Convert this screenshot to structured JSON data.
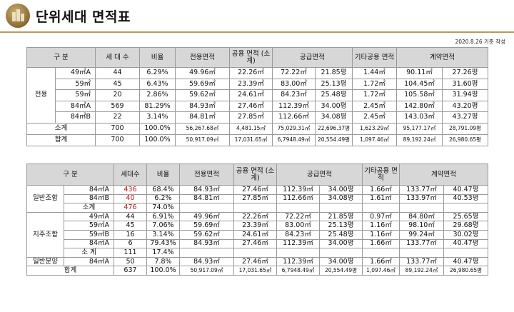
{
  "header": {
    "title": "단위세대 면적표",
    "date": "2020.8.26 기준 작성"
  },
  "table1": {
    "headers": [
      "구 분",
      "세 대 수",
      "비율",
      "전용면적",
      "공용 면적 (소계)",
      "공급면적",
      "기타공용 면적",
      "계약면적"
    ],
    "group": "전용",
    "rows": [
      [
        "49㎡A",
        "44",
        "6.29%",
        "49.96㎡",
        "22.26㎡",
        "72.22㎡",
        "21.85평",
        "1.44㎡",
        "90.11㎡",
        "27.26평"
      ],
      [
        "59㎡",
        "45",
        "6.43%",
        "59.69㎡",
        "23.39㎡",
        "83.00㎡",
        "25.13평",
        "1.72㎡",
        "104.45㎡",
        "31.60평"
      ],
      [
        "59㎡",
        "20",
        "2.86%",
        "59.62㎡",
        "24.61㎡",
        "84.23㎡",
        "25.48평",
        "1.72㎡",
        "105.58㎡",
        "31.94평"
      ],
      [
        "84㎡A",
        "569",
        "81.29%",
        "84.93㎡",
        "27.46㎡",
        "112.39㎡",
        "34.00평",
        "2.45㎡",
        "142.80㎡",
        "43.20평"
      ],
      [
        "84㎡B",
        "22",
        "3.14%",
        "84.81㎡",
        "27.85㎡",
        "112.66㎡",
        "34.08평",
        "2.45㎡",
        "143.03㎡",
        "43.27평"
      ]
    ],
    "subtotal": [
      "소계",
      "700",
      "100.0%",
      "56,267.68㎡",
      "4,481.15㎡",
      "75,029.31㎡",
      "22,696.37평",
      "1,623.29㎡",
      "95,177.17㎡",
      "28,791.09평"
    ],
    "total": [
      "합계",
      "700",
      "100.0%",
      "50,917.09㎡",
      "17,031.65㎡",
      "6,7948.49㎡",
      "20,554.49평",
      "1,097.46㎡",
      "89,192.24㎡",
      "26,980.65평"
    ]
  },
  "table2": {
    "headers": [
      "구 분",
      "세대수",
      "비율",
      "전용면적",
      "공용 면적 (소계)",
      "공급면적",
      "기타공용 면적",
      "계약면적"
    ],
    "groups": [
      {
        "name": "일반조합",
        "rows": [
          [
            "84㎡A",
            "436",
            "68.4%",
            "84.93㎡",
            "27.46㎡",
            "112.39㎡",
            "34.00평",
            "1.66㎡",
            "133.77㎡",
            "40.47평"
          ],
          [
            "84㎡B",
            "40",
            "6.2%",
            "84.81㎡",
            "27.85㎡",
            "112.66㎡",
            "34.08평",
            "1.61㎡",
            "133.97㎡",
            "40.53평"
          ]
        ],
        "subtotal": [
          "소계",
          "476",
          "74.0%"
        ]
      },
      {
        "name": "지주조합",
        "rows": [
          [
            "49㎡A",
            "44",
            "6.91%",
            "49.96㎡",
            "22.26㎡",
            "72.22㎡",
            "21.85평",
            "0.97㎡",
            "84.80㎡",
            "25.65평"
          ],
          [
            "59㎡A",
            "45",
            "7.06%",
            "59.69㎡",
            "23.39㎡",
            "83.00㎡",
            "25.13평",
            "1.16㎡",
            "98.10㎡",
            "29.68평"
          ],
          [
            "59㎡B",
            "16",
            "3.14%",
            "59.62㎡",
            "24.61㎡",
            "84.23㎡",
            "25.48평",
            "1.16㎡",
            "99.24㎡",
            "30.02평"
          ],
          [
            "84㎡A",
            "6",
            "79.43%",
            "84.93㎡",
            "27.46㎡",
            "112.39㎡",
            "34.00평",
            "1.66㎡",
            "133.77㎡",
            "40.47평"
          ]
        ],
        "subtotal": [
          "소 계",
          "111",
          "17.4%"
        ]
      },
      {
        "name": "일반분양",
        "rows": [
          [
            "84㎡A",
            "50",
            "7.8%",
            "84.93㎡",
            "27.46㎡",
            "112.39㎡",
            "34.00평",
            "1.66㎡",
            "133.77㎡",
            "40.47평"
          ]
        ]
      }
    ],
    "total": [
      "합계",
      "637",
      "100.0%",
      "50,917.09㎡",
      "17,031.65㎡",
      "6,7948.49㎡",
      "20,554.49평",
      "1,097.46㎡",
      "89,192.24㎡",
      "26,980.65평"
    ]
  },
  "colors": {
    "header_bg": "#d7d7d7",
    "accent_line": "#b89a5a",
    "highlight_red": "#b01818"
  }
}
